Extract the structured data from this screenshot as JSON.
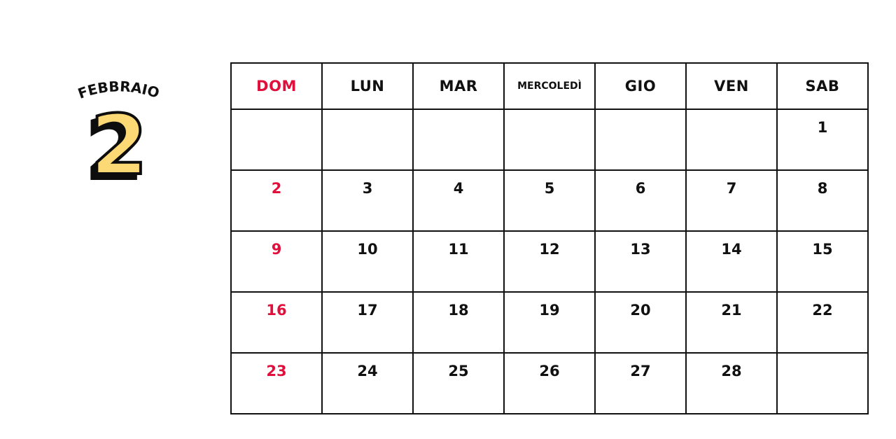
{
  "month_name": "FEBBRAIO",
  "month_number": "2",
  "colors": {
    "sunday": "#e0103c",
    "number_fill": "#fcd975",
    "ink": "#111111"
  },
  "weekdays": [
    "DOM",
    "LUN",
    "MAR",
    "MERCOLEDÌ",
    "GIO",
    "VEN",
    "SAB"
  ],
  "weeks": [
    [
      "",
      "",
      "",
      "",
      "",
      "",
      "1"
    ],
    [
      "2",
      "3",
      "4",
      "5",
      "6",
      "7",
      "8"
    ],
    [
      "9",
      "10",
      "11",
      "12",
      "13",
      "14",
      "15"
    ],
    [
      "16",
      "17",
      "18",
      "19",
      "20",
      "21",
      "22"
    ],
    [
      "23",
      "24",
      "25",
      "26",
      "27",
      "28",
      ""
    ]
  ]
}
